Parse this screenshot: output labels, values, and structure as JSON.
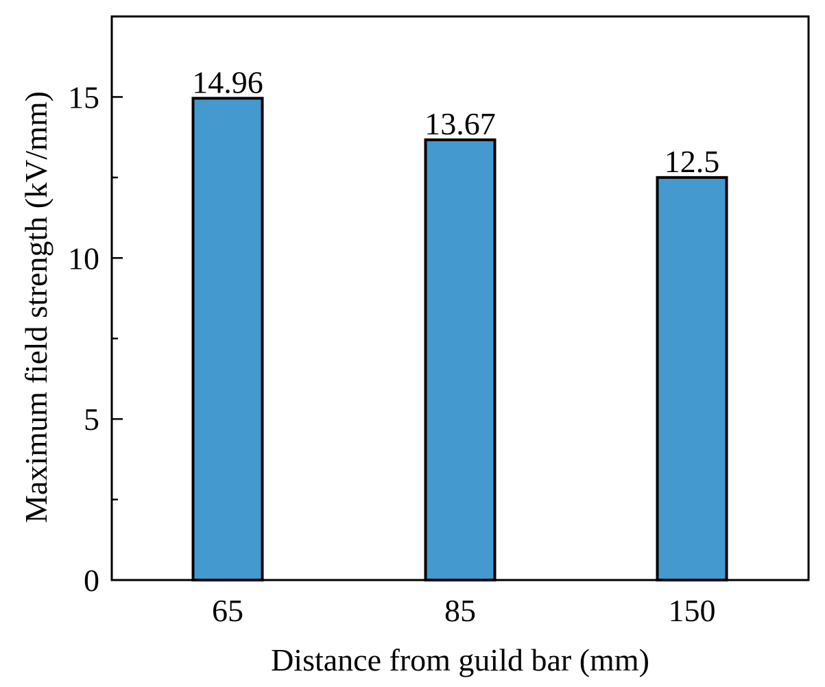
{
  "chart_data": {
    "type": "bar",
    "categories": [
      "65",
      "85",
      "150"
    ],
    "values": [
      14.96,
      13.67,
      12.5
    ],
    "data_labels": [
      "14.96",
      "13.67",
      "12.5"
    ],
    "title": "",
    "xlabel": "Distance from guild bar (mm)",
    "ylabel": "Maximum field strength (kV/mm)",
    "ylim": [
      0,
      17.5
    ],
    "yticks_major": [
      0,
      5,
      10,
      15
    ],
    "ytick_labels": [
      "0",
      "5",
      "10",
      "15"
    ],
    "yticks_minor": [
      2.5,
      7.5,
      12.5
    ],
    "bar_color": "#4499cf",
    "grid": false,
    "legend": "none"
  }
}
